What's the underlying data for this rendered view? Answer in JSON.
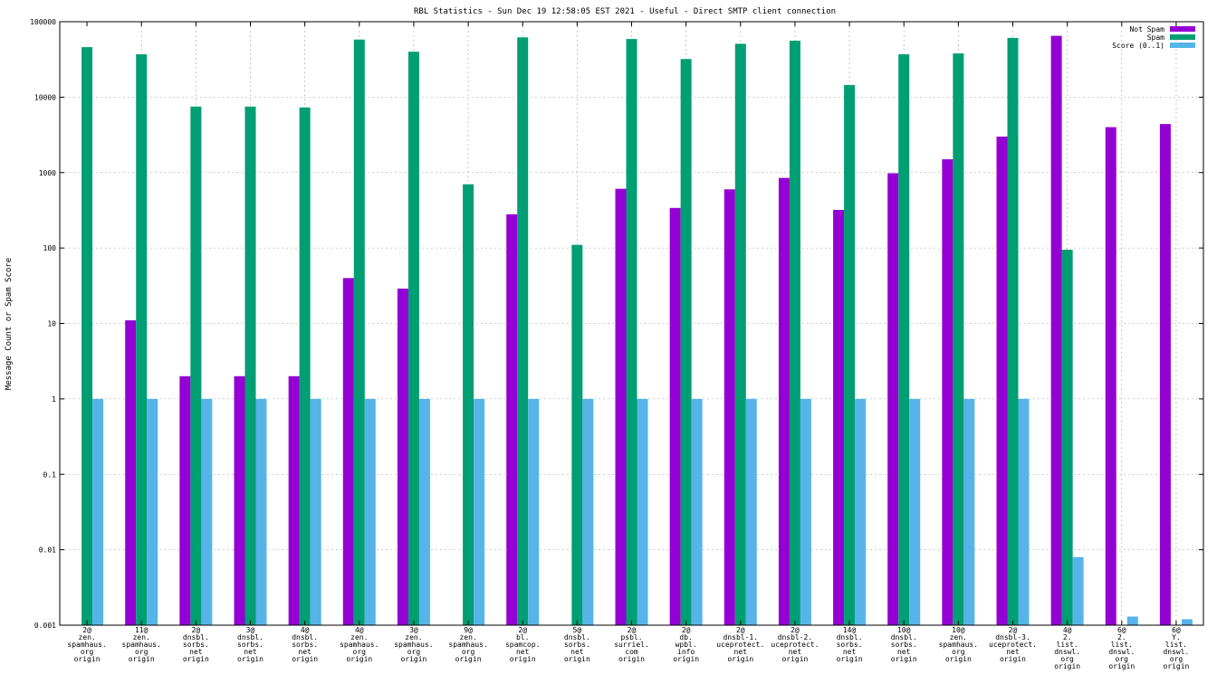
{
  "chart_data": {
    "type": "bar",
    "title": "RBL Statistics - Sun Dec 19 12:58:05 EST 2021 - Useful - Direct SMTP client connection",
    "xlabel": "",
    "ylabel": "Message Count or Spam Score",
    "yscale": "log",
    "ylim": [
      0.001,
      100000
    ],
    "yticks": [
      "0.001",
      "0.01",
      "0.1",
      "1",
      "10",
      "100",
      "1000",
      "10000",
      "100000"
    ],
    "grid": true,
    "legend_position": "top-right",
    "categories": [
      "2@ zen. spamhaus. org origin",
      "11@ zen. spamhaus. org origin",
      "2@ dnsbl. sorbs. net origin",
      "3@ dnsbl. sorbs. net origin",
      "4@ dnsbl. sorbs. net origin",
      "4@ zen. spamhaus. org origin",
      "3@ zen. spamhaus. org origin",
      "9@ zen. spamhaus. org origin",
      "2@ bl. spamcop. net origin",
      "5@ dnsbl. sorbs. net origin",
      "2@ psbl. surriel. com origin",
      "2@ db. wpbl. info origin",
      "2@ dnsbl-1. uceprotect. net origin",
      "2@ dnsbl-2. uceprotect. net origin",
      "14@ dnsbl. sorbs. net origin",
      "10@ dnsbl. sorbs. net origin",
      "10@ zen. spamhaus. org origin",
      "2@ dnsbl-3. uceprotect. net origin",
      "4@ 2. list. dnswl. org origin",
      "6@ 2. list. dnswl. org origin",
      "6@ Y. list. dnswl. org origin"
    ],
    "category_lines": [
      [
        "2@",
        "zen.",
        "spamhaus.",
        "org",
        "origin"
      ],
      [
        "11@",
        "zen.",
        "spamhaus.",
        "org",
        "origin"
      ],
      [
        "2@",
        "dnsbl.",
        "sorbs.",
        "net",
        "origin"
      ],
      [
        "3@",
        "dnsbl.",
        "sorbs.",
        "net",
        "origin"
      ],
      [
        "4@",
        "dnsbl.",
        "sorbs.",
        "net",
        "origin"
      ],
      [
        "4@",
        "zen.",
        "spamhaus.",
        "org",
        "origin"
      ],
      [
        "3@",
        "zen.",
        "spamhaus.",
        "org",
        "origin"
      ],
      [
        "9@",
        "zen.",
        "spamhaus.",
        "org",
        "origin"
      ],
      [
        "2@",
        "bl.",
        "spamcop.",
        "net",
        "origin"
      ],
      [
        "5@",
        "dnsbl.",
        "sorbs.",
        "net",
        "origin"
      ],
      [
        "2@",
        "psbl.",
        "surriel.",
        "com",
        "origin"
      ],
      [
        "2@",
        "db.",
        "wpbl.",
        "info",
        "origin"
      ],
      [
        "2@",
        "dnsbl-1.",
        "uceprotect.",
        "net",
        "origin"
      ],
      [
        "2@",
        "dnsbl-2.",
        "uceprotect.",
        "net",
        "origin"
      ],
      [
        "14@",
        "dnsbl.",
        "sorbs.",
        "net",
        "origin"
      ],
      [
        "10@",
        "dnsbl.",
        "sorbs.",
        "net",
        "origin"
      ],
      [
        "10@",
        "zen.",
        "spamhaus.",
        "org",
        "origin"
      ],
      [
        "2@",
        "dnsbl-3.",
        "uceprotect.",
        "net",
        "origin"
      ],
      [
        "4@",
        "2.",
        "list.",
        "dnswl.",
        "org",
        "origin"
      ],
      [
        "6@",
        "2.",
        "list.",
        "dnswl.",
        "org",
        "origin"
      ],
      [
        "6@",
        "Y.",
        "list.",
        "dnswl.",
        "org",
        "origin"
      ]
    ],
    "series": [
      {
        "name": "Not Spam",
        "color": "#9400d3",
        "values": [
          null,
          11,
          2,
          2,
          2,
          40,
          29,
          null,
          280,
          null,
          610,
          340,
          600,
          850,
          320,
          980,
          1500,
          3000,
          65000,
          4000,
          4400
        ]
      },
      {
        "name": "Spam",
        "color": "#009e73",
        "values": [
          46000,
          37000,
          7500,
          7500,
          7300,
          58000,
          40000,
          700,
          62000,
          110,
          59000,
          32000,
          51000,
          56000,
          14500,
          37000,
          38000,
          61000,
          95,
          null,
          null
        ]
      },
      {
        "name": "Score (0..1)",
        "color": "#56b4e9",
        "values": [
          1,
          1,
          1,
          1,
          1,
          1,
          1,
          1,
          1,
          1,
          1,
          1,
          1,
          1,
          1,
          1,
          1,
          1,
          0.008,
          0.0013,
          0.0012
        ]
      }
    ]
  }
}
